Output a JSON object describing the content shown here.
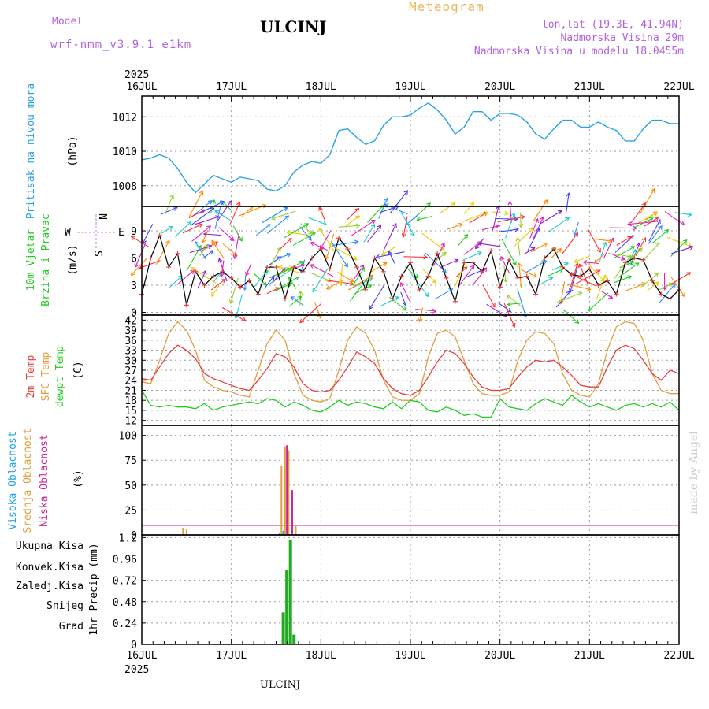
{
  "header": {
    "model_label": "Model",
    "model_value": "wrf-nmm_v3.9.1 e1km",
    "title": "ULCINJ",
    "meteogram_label": "Meteogram",
    "lonlat": "lon,lat (19.3E, 41.94N)",
    "elevation": "Nadmorska Visina 29m",
    "model_elevation": "Nadmorska Visina u modelu 18.0455m",
    "footer_title": "ULCINJ",
    "watermark": "made by Angel"
  },
  "colors": {
    "pressure": "#29a3e6",
    "wind_line": "#000000",
    "wind_marker": "#e84040",
    "temp2m": "#e84040",
    "sfc_temp": "#e0a040",
    "dewpt": "#22cc22",
    "high_cloud": "#29a3e6",
    "mid_cloud": "#e0a040",
    "low_cloud": "#cc2299",
    "total_rain": "#22aa22",
    "conv_rain": "#e84040",
    "frz_rain": "#ff8030",
    "snow": "#4444dd",
    "hail": "#22cccc"
  },
  "time_axis": {
    "year": "2025",
    "labels": [
      "16JUL",
      "17JUL",
      "18JUL",
      "19JUL",
      "20JUL",
      "21JUL",
      "22JUL"
    ]
  },
  "chart_data": [
    {
      "type": "line",
      "panel": "pressure",
      "ylabel": "Pritisak na nivou mora",
      "unit": "(hPa)",
      "ylim": [
        1006.8,
        1013.2
      ],
      "yticks": [
        "1008",
        "1010",
        "1012"
      ],
      "series": [
        {
          "x": [
            0,
            0.1,
            0.2,
            0.3,
            0.4,
            0.5,
            0.6,
            0.7,
            0.8,
            0.9,
            1.0,
            1.1,
            1.2,
            1.3,
            1.4,
            1.5,
            1.6,
            1.7,
            1.8,
            1.9,
            2.0,
            2.1,
            2.2,
            2.3,
            2.4,
            2.5,
            2.6,
            2.7,
            2.8,
            2.9,
            3.0,
            3.1,
            3.2,
            3.3,
            3.4,
            3.5,
            3.6,
            3.7,
            3.8,
            3.9,
            4.0,
            4.1,
            4.2,
            4.3,
            4.4,
            4.5,
            4.6,
            4.7,
            4.8,
            4.9,
            5.0,
            5.1,
            5.2,
            5.3,
            5.4,
            5.5,
            5.6,
            5.7,
            5.8,
            5.9,
            6.0
          ],
          "values": [
            1009.5,
            1009.6,
            1009.8,
            1009.6,
            1009.0,
            1008.2,
            1007.6,
            1008.1,
            1008.6,
            1008.4,
            1008.2,
            1008.5,
            1008.4,
            1008.3,
            1007.8,
            1007.7,
            1008.0,
            1008.8,
            1009.2,
            1009.4,
            1009.3,
            1009.8,
            1011.2,
            1011.3,
            1010.8,
            1010.4,
            1010.6,
            1011.5,
            1012.0,
            1012.0,
            1012.1,
            1012.5,
            1012.8,
            1012.4,
            1011.8,
            1011.0,
            1011.4,
            1012.3,
            1012.3,
            1011.8,
            1012.2,
            1012.2,
            1012.1,
            1011.7,
            1011.0,
            1010.7,
            1011.3,
            1011.8,
            1011.8,
            1011.4,
            1011.4,
            1011.7,
            1011.4,
            1011.2,
            1010.6,
            1010.6,
            1011.3,
            1011.8,
            1011.8,
            1011.6,
            1011.6
          ]
        }
      ]
    },
    {
      "type": "line",
      "panel": "wind",
      "ylabel": "10m Vjetar",
      "ylabel2": "Brzina i Pravac",
      "unit": "(m/s)",
      "compass": {
        "n": "N",
        "s": "S",
        "e": "E",
        "w": "W"
      },
      "ylim": [
        -0.3,
        11.7
      ],
      "yticks": [
        "0",
        "3",
        "6",
        "9"
      ],
      "series": [
        {
          "x": [
            0,
            0.1,
            0.2,
            0.3,
            0.4,
            0.5,
            0.6,
            0.7,
            0.8,
            0.9,
            1.0,
            1.1,
            1.2,
            1.3,
            1.4,
            1.5,
            1.6,
            1.7,
            1.8,
            1.9,
            2.0,
            2.1,
            2.2,
            2.3,
            2.4,
            2.5,
            2.6,
            2.7,
            2.8,
            2.9,
            3.0,
            3.1,
            3.2,
            3.3,
            3.4,
            3.5,
            3.6,
            3.7,
            3.8,
            3.9,
            4.0,
            4.1,
            4.2,
            4.3,
            4.4,
            4.5,
            4.6,
            4.7,
            4.8,
            4.9,
            5.0,
            5.1,
            5.2,
            5.3,
            5.4,
            5.5,
            5.6,
            5.7,
            5.8,
            5.9,
            6.0
          ],
          "values": [
            2.0,
            6.0,
            8.5,
            5.0,
            6.5,
            0.8,
            4.5,
            3.0,
            4.0,
            4.5,
            3.8,
            2.8,
            3.5,
            2.0,
            5.0,
            5.0,
            1.5,
            5.0,
            4.5,
            6.0,
            7.0,
            4.8,
            8.2,
            7.0,
            5.0,
            2.5,
            6.0,
            4.5,
            1.5,
            4.0,
            5.5,
            2.5,
            4.0,
            6.5,
            3.8,
            1.2,
            5.5,
            5.5,
            4.5,
            6.8,
            2.8,
            5.8,
            3.8,
            4.0,
            2.0,
            6.0,
            7.0,
            5.0,
            4.2,
            4.0,
            4.8,
            3.0,
            3.5,
            2.0,
            5.5,
            6.0,
            5.8,
            3.5,
            2.0,
            1.5,
            2.5
          ]
        }
      ]
    },
    {
      "type": "line",
      "panel": "temperature",
      "ylabel": "2m Temp",
      "ylabel2": "SFC Temp",
      "ylabel3": "dewpt Temp",
      "unit": "(C)",
      "ylim": [
        10.5,
        43.5
      ],
      "yticks": [
        "12",
        "15",
        "18",
        "21",
        "24",
        "27",
        "30",
        "33",
        "36",
        "39",
        "42"
      ],
      "series": [
        {
          "name": "2m Temp",
          "x": [
            0,
            0.1,
            0.2,
            0.3,
            0.4,
            0.5,
            0.6,
            0.7,
            0.8,
            0.9,
            1.0,
            1.1,
            1.2,
            1.3,
            1.4,
            1.5,
            1.6,
            1.7,
            1.8,
            1.9,
            2.0,
            2.1,
            2.2,
            2.3,
            2.4,
            2.5,
            2.6,
            2.7,
            2.8,
            2.9,
            3.0,
            3.1,
            3.2,
            3.3,
            3.4,
            3.5,
            3.6,
            3.7,
            3.8,
            3.9,
            4.0,
            4.1,
            4.2,
            4.3,
            4.4,
            4.5,
            4.6,
            4.7,
            4.8,
            4.9,
            5.0,
            5.1,
            5.2,
            5.3,
            5.4,
            5.5,
            5.6,
            5.7,
            5.8,
            5.9,
            6.0
          ],
          "values": [
            24.5,
            24.0,
            28.0,
            32.0,
            34.5,
            33.0,
            30.5,
            26.0,
            24.5,
            23.5,
            22.5,
            21.5,
            21.0,
            24.0,
            27.5,
            32.0,
            31.0,
            28.0,
            23.0,
            21.0,
            20.5,
            21.0,
            24.0,
            28.0,
            32.5,
            31.0,
            29.0,
            24.5,
            21.5,
            20.0,
            19.5,
            21.0,
            25.0,
            29.5,
            33.0,
            32.0,
            29.0,
            25.0,
            22.0,
            21.0,
            21.0,
            21.5,
            25.0,
            28.0,
            30.0,
            29.5,
            30.0,
            28.0,
            25.5,
            22.5,
            22.0,
            22.0,
            28.0,
            33.0,
            34.5,
            33.5,
            30.0,
            26.0,
            24.0,
            27.0,
            26.0
          ]
        },
        {
          "name": "SFC Temp",
          "x": [
            0,
            0.1,
            0.2,
            0.3,
            0.4,
            0.5,
            0.6,
            0.7,
            0.8,
            0.9,
            1.0,
            1.1,
            1.2,
            1.3,
            1.4,
            1.5,
            1.6,
            1.7,
            1.8,
            1.9,
            2.0,
            2.1,
            2.2,
            2.3,
            2.4,
            2.5,
            2.6,
            2.7,
            2.8,
            2.9,
            3.0,
            3.1,
            3.2,
            3.3,
            3.4,
            3.5,
            3.6,
            3.7,
            3.8,
            3.9,
            4.0,
            4.1,
            4.2,
            4.3,
            4.4,
            4.5,
            4.6,
            4.7,
            4.8,
            4.9,
            5.0,
            5.1,
            5.2,
            5.3,
            5.4,
            5.5,
            5.6,
            5.7,
            5.8,
            5.9,
            6.0
          ],
          "values": [
            23.5,
            23.0,
            30.0,
            38.0,
            41.5,
            39.0,
            33.0,
            24.0,
            22.0,
            21.0,
            20.5,
            19.5,
            19.0,
            27.0,
            35.0,
            39.0,
            36.0,
            26.0,
            19.5,
            18.0,
            17.5,
            18.5,
            27.0,
            36.0,
            40.0,
            38.0,
            33.0,
            24.0,
            19.0,
            18.0,
            18.0,
            20.0,
            31.0,
            38.0,
            39.0,
            37.0,
            30.0,
            23.0,
            20.0,
            19.5,
            19.5,
            20.5,
            30.0,
            36.0,
            38.5,
            38.0,
            35.0,
            26.0,
            21.0,
            19.5,
            19.0,
            23.0,
            33.0,
            40.0,
            41.5,
            41.0,
            36.0,
            26.0,
            21.0,
            20.0,
            20.0
          ]
        },
        {
          "name": "dewpt Temp",
          "x": [
            0,
            0.1,
            0.2,
            0.3,
            0.4,
            0.5,
            0.6,
            0.7,
            0.8,
            0.9,
            1.0,
            1.1,
            1.2,
            1.3,
            1.4,
            1.5,
            1.6,
            1.7,
            1.8,
            1.9,
            2.0,
            2.1,
            2.2,
            2.3,
            2.4,
            2.5,
            2.6,
            2.7,
            2.8,
            2.9,
            3.0,
            3.1,
            3.2,
            3.3,
            3.4,
            3.5,
            3.6,
            3.7,
            3.8,
            3.9,
            4.0,
            4.1,
            4.2,
            4.3,
            4.4,
            4.5,
            4.6,
            4.7,
            4.8,
            4.9,
            5.0,
            5.1,
            5.2,
            5.3,
            5.4,
            5.5,
            5.6,
            5.7,
            5.8,
            5.9,
            6.0
          ],
          "values": [
            21.0,
            16.5,
            16.0,
            16.5,
            16.0,
            16.0,
            15.5,
            17.0,
            15.0,
            16.0,
            16.5,
            17.0,
            17.5,
            17.0,
            18.5,
            18.0,
            16.0,
            17.5,
            16.5,
            15.0,
            14.5,
            16.0,
            18.0,
            16.5,
            17.5,
            17.0,
            16.0,
            15.5,
            17.5,
            15.5,
            18.0,
            17.5,
            15.0,
            14.5,
            16.0,
            15.0,
            13.5,
            14.0,
            13.0,
            13.0,
            18.5,
            16.0,
            15.5,
            15.0,
            17.0,
            18.5,
            17.5,
            16.5,
            19.5,
            17.5,
            16.0,
            17.0,
            16.0,
            15.0,
            16.5,
            17.0,
            16.0,
            17.0,
            16.0,
            17.5,
            15.0
          ]
        }
      ]
    },
    {
      "type": "bar",
      "panel": "clouds",
      "ylabel": "Visoka Oblacnost",
      "ylabel2": "Srednja Oblacnost",
      "ylabel3": "Niska Oblacnost",
      "unit": "(%)",
      "ylim": [
        0,
        110
      ],
      "yticks": [
        "0",
        "25",
        "50",
        "75",
        "100"
      ],
      "series": [
        {
          "name": "Visoka Oblacnost",
          "x": [
            1.54,
            1.58
          ],
          "values": [
            2,
            4
          ]
        },
        {
          "name": "Srednja Oblacnost",
          "x": [
            0.46,
            0.5,
            1.56,
            1.6,
            1.64,
            1.72
          ],
          "values": [
            7,
            6,
            69,
            89,
            85,
            10
          ]
        },
        {
          "name": "Niska Oblacnost",
          "x": [
            1.62,
            1.68
          ],
          "values": [
            90,
            45
          ]
        }
      ]
    },
    {
      "type": "bar",
      "panel": "precip",
      "ylabel": "1hr Precip",
      "unit": "(mm)",
      "legend": [
        "Ukupna Kisa",
        "Konvek.Kisa",
        "Zaledj.Kisa",
        "Snijeg",
        "Grad"
      ],
      "ylim": [
        0,
        1.23
      ],
      "yticks": [
        "0",
        "0.24",
        "0.48",
        "0.72",
        "0.96",
        "1.2"
      ],
      "series": [
        {
          "name": "Ukupna Kisa",
          "x": [
            1.58,
            1.62,
            1.66,
            1.7
          ],
          "values": [
            0.36,
            0.84,
            1.17,
            0.11
          ]
        },
        {
          "name": "Konvek.Kisa",
          "x": [
            1.58,
            1.62,
            1.66
          ],
          "values": [
            0.36,
            0.84,
            1.17
          ]
        }
      ]
    }
  ]
}
